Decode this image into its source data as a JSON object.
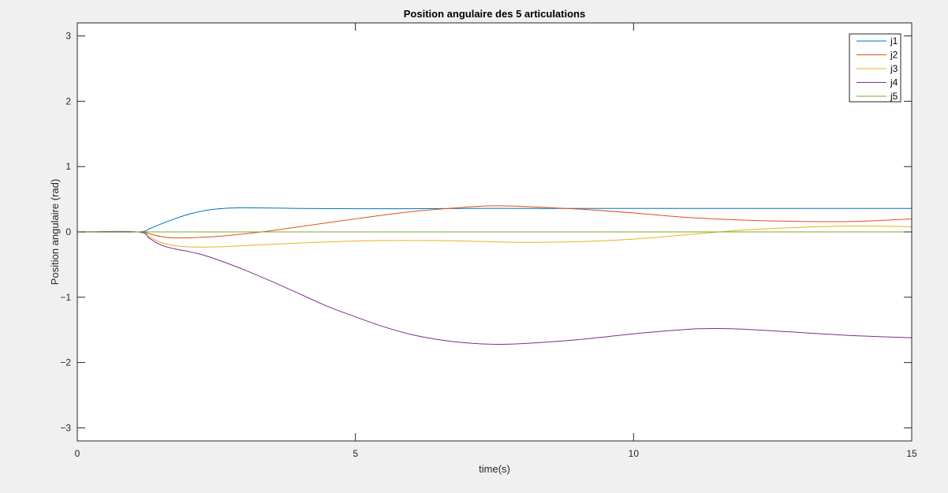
{
  "chart_data": {
    "type": "line",
    "title": "Position angulaire des 5 articulations",
    "xlabel": "time(s)",
    "ylabel": "Position angulaire (rad)",
    "xlim": [
      0,
      15
    ],
    "ylim": [
      -3.2,
      3.2
    ],
    "xticks": [
      0,
      5,
      10,
      15
    ],
    "yticks": [
      -3,
      -2,
      -1,
      0,
      1,
      2,
      3
    ],
    "grid": false,
    "legend_position": "top-right",
    "series": [
      {
        "name": "j1",
        "color": "#0072bd",
        "x": [
          0,
          1.08,
          1.3,
          1.5,
          1.75,
          2.0,
          2.25,
          2.5,
          2.75,
          3.0,
          3.5,
          4,
          5,
          6,
          7,
          8,
          9,
          10,
          12,
          15
        ],
        "y": [
          0,
          0,
          0.05,
          0.12,
          0.2,
          0.27,
          0.32,
          0.35,
          0.365,
          0.37,
          0.365,
          0.36,
          0.355,
          0.355,
          0.36,
          0.36,
          0.36,
          0.36,
          0.36,
          0.36
        ]
      },
      {
        "name": "j2",
        "color": "#d95319",
        "x": [
          0,
          1.08,
          1.3,
          1.5,
          1.7,
          2.0,
          2.5,
          3.0,
          3.5,
          4,
          5,
          6,
          7,
          7.5,
          8,
          9,
          10,
          11,
          12,
          13,
          14,
          15
        ],
        "y": [
          0,
          0,
          -0.03,
          -0.07,
          -0.09,
          -0.09,
          -0.07,
          -0.03,
          0.02,
          0.08,
          0.2,
          0.31,
          0.38,
          0.4,
          0.39,
          0.35,
          0.29,
          0.22,
          0.18,
          0.16,
          0.16,
          0.2
        ]
      },
      {
        "name": "j3",
        "color": "#edb120",
        "x": [
          0,
          1.08,
          1.3,
          1.5,
          1.75,
          2.0,
          2.5,
          3.0,
          4,
          5,
          6,
          7,
          8,
          9,
          10,
          11,
          12,
          13,
          14,
          15
        ],
        "y": [
          0,
          0,
          -0.08,
          -0.16,
          -0.21,
          -0.23,
          -0.23,
          -0.21,
          -0.17,
          -0.14,
          -0.13,
          -0.14,
          -0.16,
          -0.15,
          -0.11,
          -0.04,
          0.03,
          0.07,
          0.09,
          0.08
        ]
      },
      {
        "name": "j4",
        "color": "#7e2f8e",
        "x": [
          0,
          1.08,
          1.3,
          1.5,
          1.75,
          2.0,
          2.25,
          2.5,
          3.0,
          3.5,
          4,
          4.5,
          5,
          5.5,
          6,
          6.5,
          7,
          7.5,
          8,
          9,
          10,
          11,
          11.5,
          12,
          13,
          14,
          15
        ],
        "y": [
          0,
          0,
          -0.1,
          -0.2,
          -0.26,
          -0.3,
          -0.35,
          -0.42,
          -0.58,
          -0.76,
          -0.95,
          -1.14,
          -1.3,
          -1.45,
          -1.57,
          -1.65,
          -1.7,
          -1.72,
          -1.71,
          -1.65,
          -1.56,
          -1.49,
          -1.48,
          -1.49,
          -1.54,
          -1.59,
          -1.62
        ]
      },
      {
        "name": "j5",
        "color": "#77ac30",
        "x": [
          0,
          15
        ],
        "y": [
          0,
          0
        ]
      }
    ]
  }
}
